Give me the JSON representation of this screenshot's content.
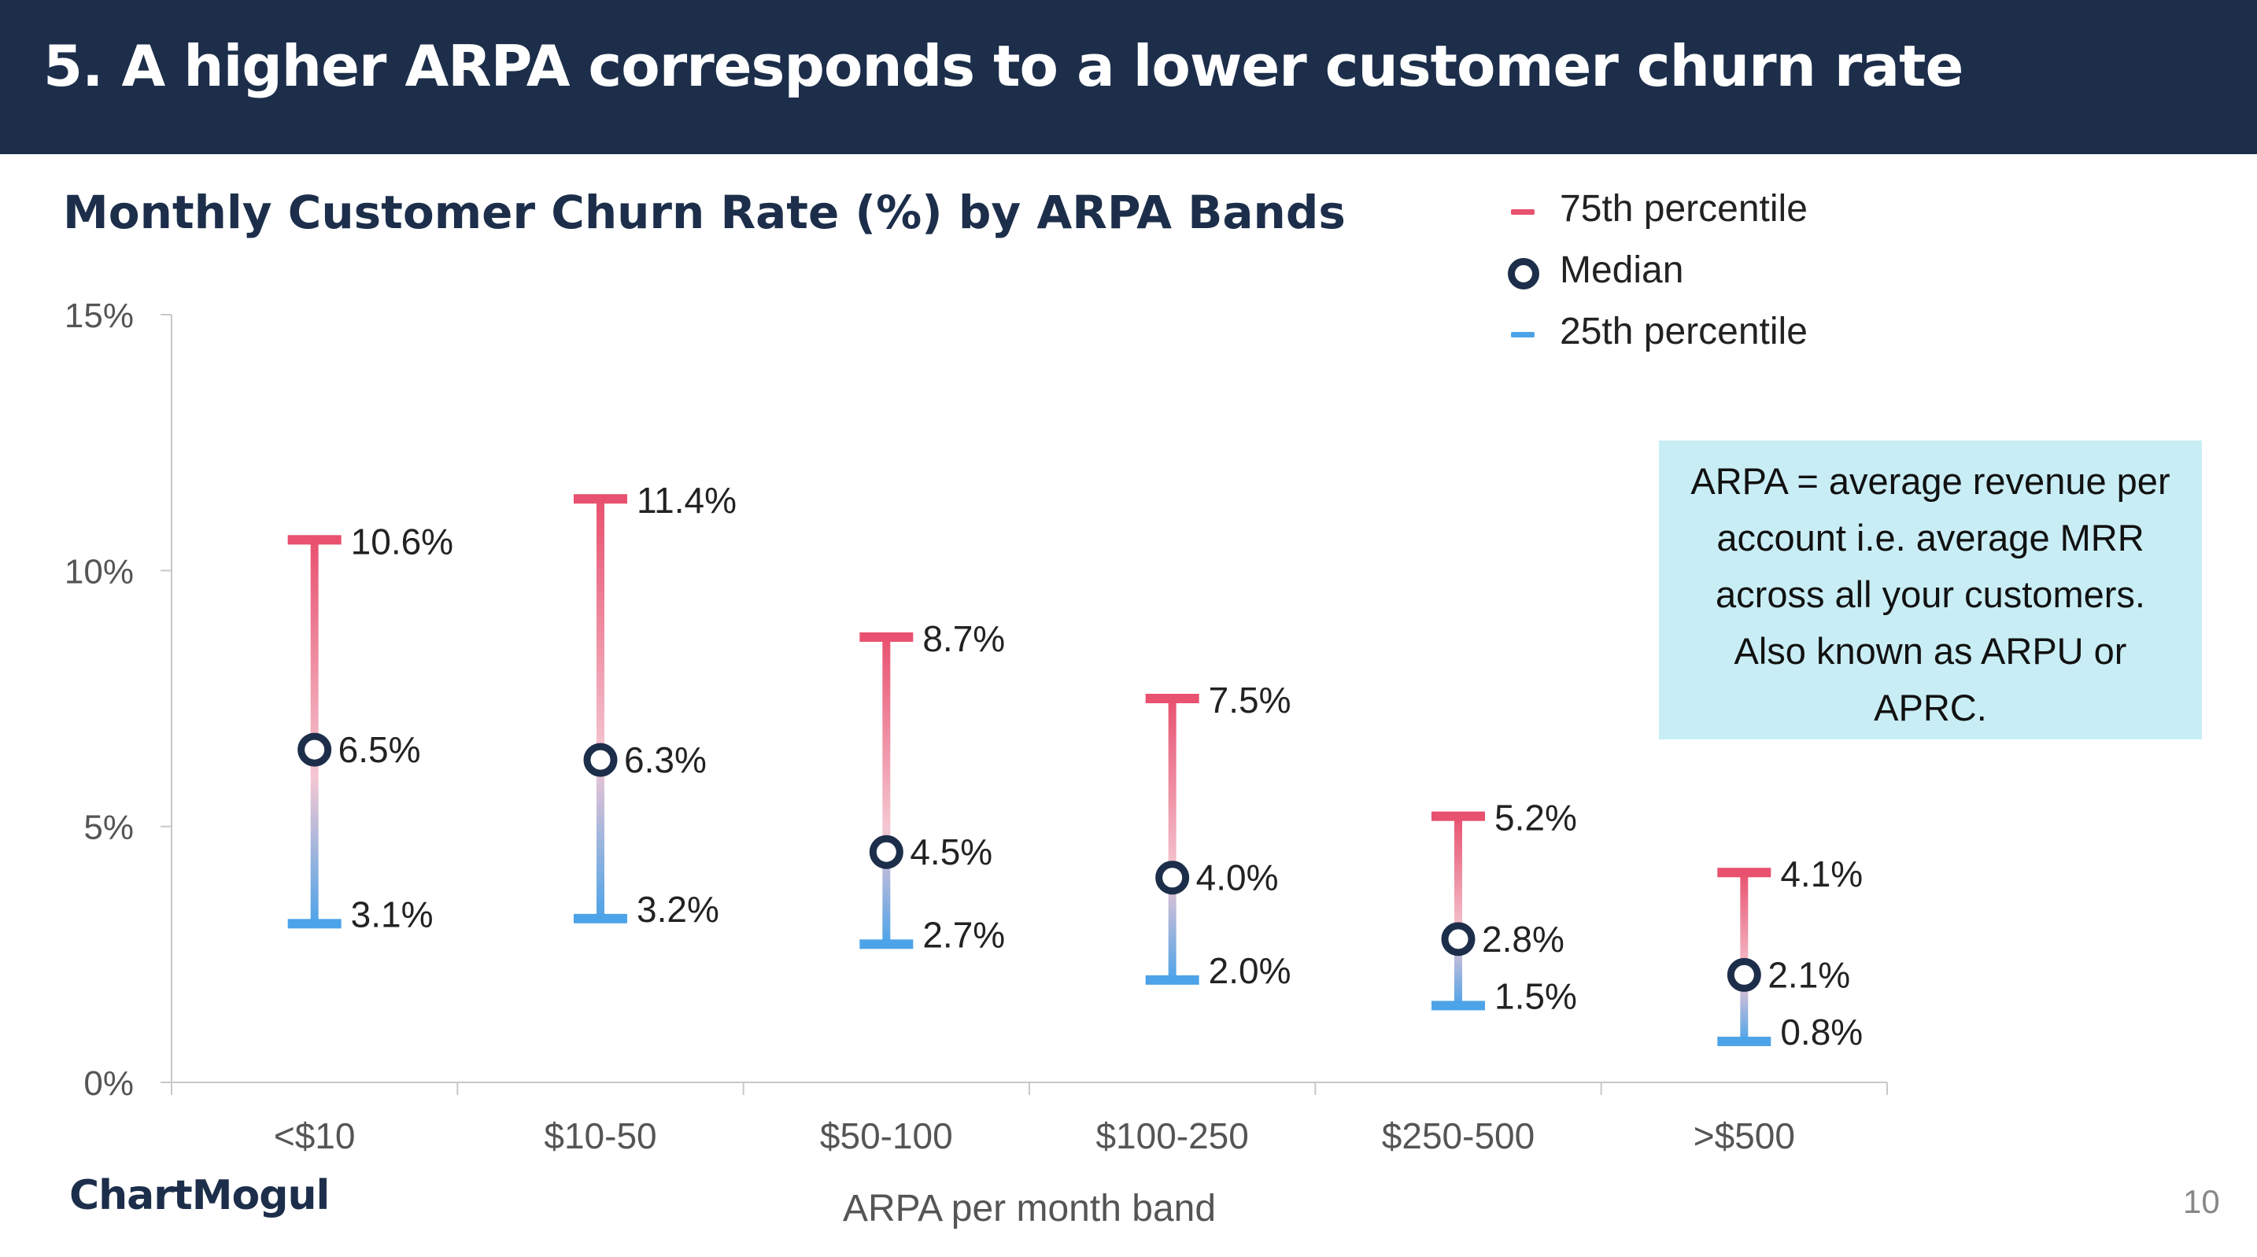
{
  "header": {
    "title": "5. A higher ARPA corresponds to a lower customer churn rate"
  },
  "legend": [
    {
      "label": "75th percentile",
      "color": "#e8516f",
      "marker": "dash"
    },
    {
      "label": "Median",
      "color": "#1c2e4a",
      "marker": "ring"
    },
    {
      "label": "25th percentile",
      "color": "#4da3e8",
      "marker": "dash"
    }
  ],
  "note": {
    "text": "ARPA = average revenue per account i.e. average MRR across all your customers. Also known as ARPU or APRC."
  },
  "footer": {
    "logo_text": "ChartMogul",
    "page_number": "10"
  },
  "chart_data": {
    "type": "range",
    "title": "Monthly Customer Churn Rate (%) by ARPA Bands",
    "xlabel": "ARPA per month band",
    "ylabel": "",
    "ylim": [
      0,
      15
    ],
    "yticks": [
      0,
      5,
      10,
      15
    ],
    "ytick_labels": [
      "0%",
      "5%",
      "10%",
      "15%"
    ],
    "categories": [
      "<$10",
      "$10-50",
      "$50-100",
      "$100-250",
      "$250-500",
      ">$500"
    ],
    "series": [
      {
        "name": "75th percentile",
        "values": [
          10.6,
          11.4,
          8.7,
          7.5,
          5.2,
          4.1
        ],
        "labels": [
          "10.6%",
          "11.4%",
          "8.7%",
          "7.5%",
          "5.2%",
          "4.1%"
        ]
      },
      {
        "name": "Median",
        "values": [
          6.5,
          6.3,
          4.5,
          4.0,
          2.8,
          2.1
        ],
        "labels": [
          "6.5%",
          "6.3%",
          "4.5%",
          "4.0%",
          "2.8%",
          "2.1%"
        ]
      },
      {
        "name": "25th percentile",
        "values": [
          3.1,
          3.2,
          2.7,
          2.0,
          1.5,
          0.8
        ],
        "labels": [
          "3.1%",
          "3.2%",
          "2.7%",
          "2.0%",
          "1.5%",
          "0.8%"
        ]
      }
    ],
    "colors": {
      "p75": "#e8516f",
      "median": "#1c2e4a",
      "p25": "#4da3e8"
    },
    "grid": false,
    "legend_position": "top-right"
  }
}
